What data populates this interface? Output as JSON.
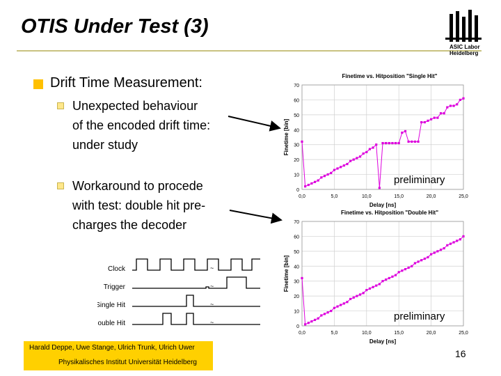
{
  "slide": {
    "title": "OTIS Under Test (3)",
    "logo_line1": "ASIC Labor",
    "logo_line2": "Heidelberg",
    "heading": "Drift Time Measurement:",
    "bullet1_lines": [
      "Unexpected behaviour",
      "of the encoded drift time:",
      "under study"
    ],
    "bullet2_lines": [
      "Workaround to procede",
      "with test: double hit pre-",
      "charges the decoder"
    ],
    "preliminary_label": "preliminary",
    "footer_line1": "Harald Deppe, Uwe Stange, Ulrich Trunk, Ulrich Uwer",
    "footer_line2": "Physikalisches Institut Universität Heidelberg",
    "page_number": "16",
    "colors": {
      "accent": "#ffc000",
      "marker": "#dd00dd",
      "footer": "#ffd000"
    }
  },
  "timing_diagram": {
    "labels": [
      "Clock",
      "Trigger",
      "Single Hit",
      "Double Hit"
    ]
  },
  "chart_data": [
    {
      "type": "line",
      "title": "Finetime vs. Hitposition \"Single Hit\"",
      "xlabel": "Delay [ns]",
      "ylabel": "Finetime [bin]",
      "xlim": [
        0,
        25
      ],
      "ylim": [
        0,
        70
      ],
      "xticks": [
        "0,0",
        "5,0",
        "10,0",
        "15,0",
        "20,0",
        "25,0"
      ],
      "yticks": [
        "0",
        "10",
        "20",
        "30",
        "40",
        "50",
        "60",
        "70"
      ],
      "grid": true,
      "series": [
        {
          "x": [
            0,
            0.5,
            1,
            1.5,
            2,
            2.5,
            3,
            3.5,
            4,
            4.5,
            5,
            5.5,
            6,
            6.5,
            7,
            7.5,
            8,
            8.5,
            9,
            9.5,
            10,
            10.5,
            11,
            11.5,
            12,
            12.5,
            13,
            13.5,
            14,
            14.5,
            15,
            15.5,
            16,
            16.5,
            17,
            17.5,
            18,
            18.5,
            19,
            19.5,
            20,
            20.5,
            21,
            21.5,
            22,
            22.5,
            23,
            23.5,
            24,
            24.5,
            25
          ],
          "y": [
            32,
            2,
            3,
            4,
            5,
            6,
            8,
            9,
            10,
            11,
            13,
            14,
            15,
            16,
            17,
            19,
            20,
            21,
            22,
            24,
            25,
            27,
            28,
            30,
            1,
            31,
            31,
            31,
            31,
            31,
            31,
            38,
            39,
            32,
            32,
            32,
            32,
            45,
            45,
            46,
            47,
            48,
            48,
            51,
            51,
            55,
            56,
            56,
            57,
            60,
            61
          ]
        }
      ]
    },
    {
      "type": "line",
      "title": "Finetime vs. Hitposition \"Double Hit\"",
      "xlabel": "Delay [ns]",
      "ylabel": "Finetime [bin]",
      "xlim": [
        0,
        25
      ],
      "ylim": [
        0,
        70
      ],
      "xticks": [
        "0,0",
        "5,0",
        "10,0",
        "15,0",
        "20,0",
        "25,0"
      ],
      "yticks": [
        "0",
        "10",
        "20",
        "30",
        "40",
        "50",
        "60",
        "70"
      ],
      "grid": true,
      "series": [
        {
          "x": [
            0,
            0.5,
            1,
            1.5,
            2,
            2.5,
            3,
            3.5,
            4,
            4.5,
            5,
            5.5,
            6,
            6.5,
            7,
            7.5,
            8,
            8.5,
            9,
            9.5,
            10,
            10.5,
            11,
            11.5,
            12,
            12.5,
            13,
            13.5,
            14,
            14.5,
            15,
            15.5,
            16,
            16.5,
            17,
            17.5,
            18,
            18.5,
            19,
            19.5,
            20,
            20.5,
            21,
            21.5,
            22,
            22.5,
            23,
            23.5,
            24,
            24.5,
            25
          ],
          "y": [
            32,
            1,
            2,
            3,
            4,
            5,
            7,
            8,
            9,
            10,
            12,
            13,
            14,
            15,
            16,
            18,
            19,
            20,
            21,
            22,
            24,
            25,
            26,
            27,
            28,
            30,
            31,
            32,
            33,
            34,
            36,
            37,
            38,
            39,
            40,
            42,
            43,
            44,
            45,
            46,
            48,
            49,
            50,
            51,
            52,
            54,
            55,
            56,
            57,
            58,
            60
          ]
        }
      ]
    }
  ]
}
